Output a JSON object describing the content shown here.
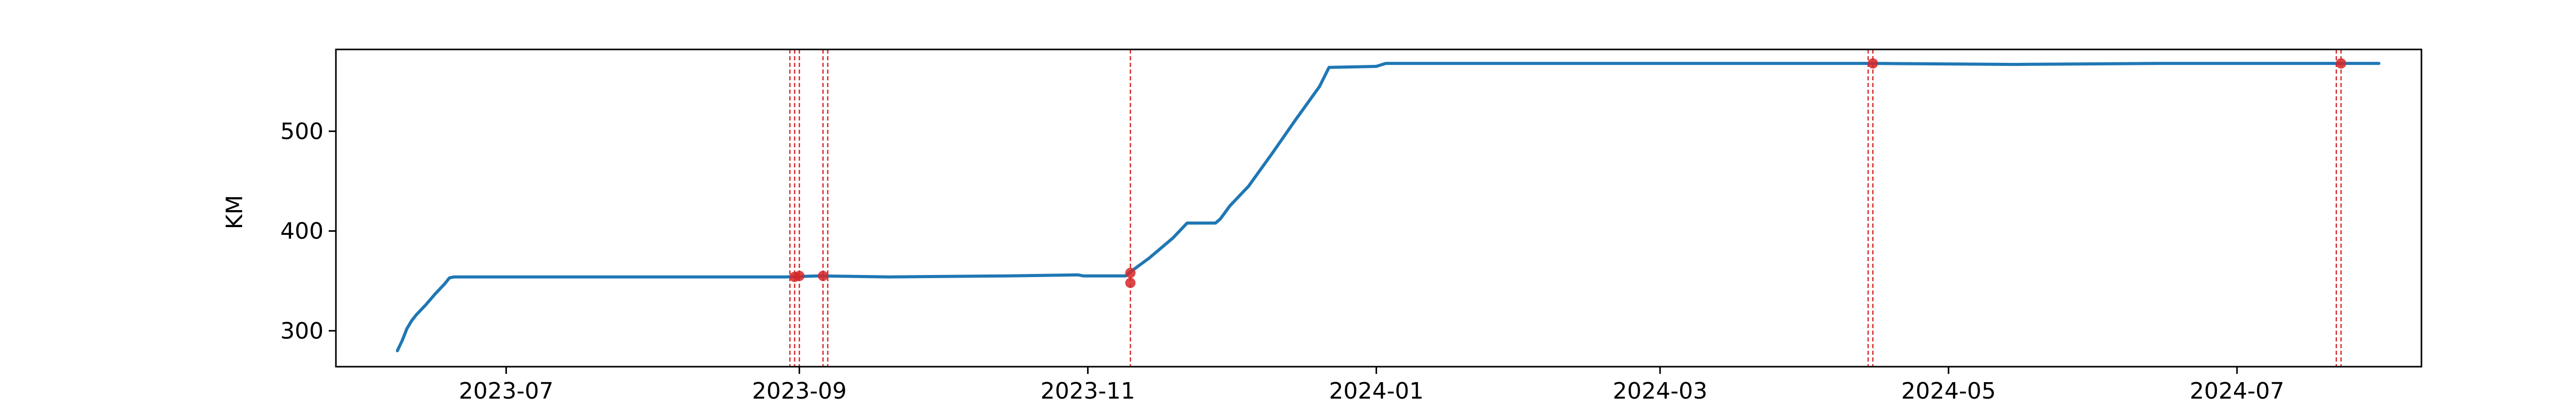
{
  "chart_data": {
    "type": "line",
    "ylabel": "KM",
    "xlabel": "",
    "title": "",
    "x_range": [
      "2023-05-26",
      "2024-08-09"
    ],
    "ylim": [
      264,
      582
    ],
    "x_ticks": [
      {
        "date": "2023-07-01",
        "label": "2023-07"
      },
      {
        "date": "2023-09-01",
        "label": "2023-09"
      },
      {
        "date": "2023-11-01",
        "label": "2023-11"
      },
      {
        "date": "2024-01-01",
        "label": "2024-01"
      },
      {
        "date": "2024-03-01",
        "label": "2024-03"
      },
      {
        "date": "2024-05-01",
        "label": "2024-05"
      },
      {
        "date": "2024-07-01",
        "label": "2024-07"
      }
    ],
    "y_ticks": [
      300,
      400,
      500
    ],
    "series": [
      {
        "name": "KM",
        "color": "#1f77b4",
        "points": [
          [
            "2023-06-08",
            280
          ],
          [
            "2023-06-09",
            290
          ],
          [
            "2023-06-10",
            302
          ],
          [
            "2023-06-11",
            310
          ],
          [
            "2023-06-12",
            316
          ],
          [
            "2023-06-14",
            326
          ],
          [
            "2023-06-16",
            337
          ],
          [
            "2023-06-18",
            347
          ],
          [
            "2023-06-19",
            353
          ],
          [
            "2023-06-20",
            354
          ],
          [
            "2023-07-15",
            354
          ],
          [
            "2023-08-15",
            354
          ],
          [
            "2023-08-29",
            354
          ],
          [
            "2023-09-05",
            355
          ],
          [
            "2023-09-20",
            354
          ],
          [
            "2023-10-15",
            355
          ],
          [
            "2023-10-30",
            356
          ],
          [
            "2023-10-31",
            355
          ],
          [
            "2023-11-09",
            355
          ],
          [
            "2023-11-10",
            359
          ],
          [
            "2023-11-14",
            373
          ],
          [
            "2023-11-19",
            393
          ],
          [
            "2023-11-22",
            408
          ],
          [
            "2023-11-28",
            408
          ],
          [
            "2023-11-29",
            412
          ],
          [
            "2023-12-01",
            425
          ],
          [
            "2023-12-05",
            445
          ],
          [
            "2023-12-10",
            478
          ],
          [
            "2023-12-15",
            512
          ],
          [
            "2023-12-20",
            545
          ],
          [
            "2023-12-22",
            564
          ],
          [
            "2024-01-01",
            565
          ],
          [
            "2024-01-03",
            568
          ],
          [
            "2024-02-01",
            568
          ],
          [
            "2024-03-01",
            568
          ],
          [
            "2024-04-15",
            568
          ],
          [
            "2024-05-15",
            567
          ],
          [
            "2024-06-15",
            568
          ],
          [
            "2024-07-24",
            568
          ],
          [
            "2024-07-31",
            568
          ]
        ]
      }
    ],
    "events": {
      "color": "#d62728",
      "vlines": [
        "2023-08-30",
        "2023-08-31",
        "2023-09-01",
        "2023-09-06",
        "2023-09-07",
        "2023-11-10",
        "2024-04-14",
        "2024-04-15",
        "2024-07-22",
        "2024-07-23"
      ],
      "markers": [
        [
          "2023-08-31",
          354
        ],
        [
          "2023-09-01",
          355
        ],
        [
          "2023-09-06",
          355
        ],
        [
          "2023-11-10",
          358
        ],
        [
          "2023-11-10",
          348
        ],
        [
          "2024-04-15",
          568
        ],
        [
          "2024-07-23",
          568
        ]
      ]
    }
  }
}
